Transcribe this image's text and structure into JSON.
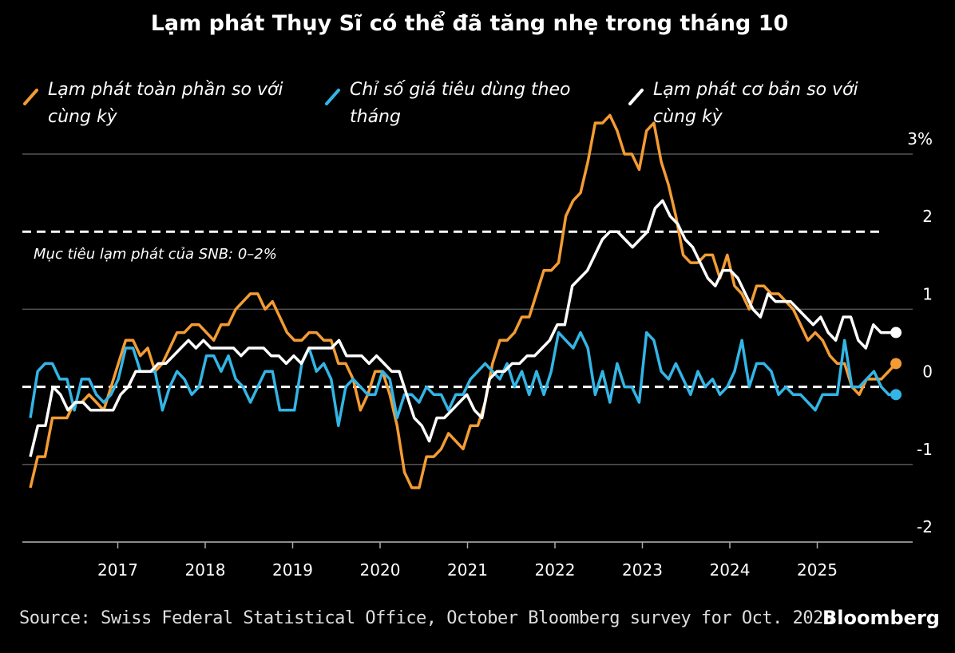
{
  "chart_data": {
    "type": "line",
    "title": "Lạm phát Thụy Sĩ có thể đã tăng nhẹ trong tháng 10",
    "ylim": [
      -2,
      3
    ],
    "yticks": [
      {
        "v": 3,
        "label": "3%"
      },
      {
        "v": 2,
        "label": "2"
      },
      {
        "v": 1,
        "label": "1"
      },
      {
        "v": 0,
        "label": "0"
      },
      {
        "v": -1,
        "label": "-1"
      },
      {
        "v": -2,
        "label": "-2"
      }
    ],
    "x_start": 2016.0,
    "x_end": 2025.9,
    "xticks": [
      "2017",
      "2018",
      "2019",
      "2020",
      "2021",
      "2022",
      "2023",
      "2024",
      "2025"
    ],
    "grid": true,
    "legend_position": "top",
    "reference_lines": [
      {
        "value": 2,
        "style": "dashed"
      },
      {
        "value": 0,
        "style": "dashed"
      }
    ],
    "annotation": "Mục tiêu lạm phát của SNB: 0–2%",
    "series": [
      {
        "name": "Lạm phát toàn phần so với cùng kỳ",
        "color": "#f39c33",
        "dot_last": true,
        "values": [
          -1.3,
          -0.9,
          -0.9,
          -0.4,
          -0.4,
          -0.4,
          -0.2,
          -0.2,
          -0.1,
          -0.2,
          -0.3,
          0.0,
          0.3,
          0.6,
          0.6,
          0.4,
          0.5,
          0.2,
          0.3,
          0.5,
          0.7,
          0.7,
          0.8,
          0.8,
          0.7,
          0.6,
          0.8,
          0.8,
          1.0,
          1.1,
          1.2,
          1.2,
          1.0,
          1.1,
          0.9,
          0.7,
          0.6,
          0.6,
          0.7,
          0.7,
          0.6,
          0.6,
          0.3,
          0.3,
          0.1,
          -0.3,
          -0.1,
          0.2,
          0.2,
          -0.1,
          -0.5,
          -1.1,
          -1.3,
          -1.3,
          -0.9,
          -0.9,
          -0.8,
          -0.6,
          -0.7,
          -0.8,
          -0.5,
          -0.5,
          -0.2,
          0.3,
          0.6,
          0.6,
          0.7,
          0.9,
          0.9,
          1.2,
          1.5,
          1.5,
          1.6,
          2.2,
          2.4,
          2.5,
          2.9,
          3.4,
          3.4,
          3.5,
          3.3,
          3.0,
          3.0,
          2.8,
          3.3,
          3.4,
          2.9,
          2.6,
          2.2,
          1.7,
          1.6,
          1.6,
          1.7,
          1.7,
          1.4,
          1.7,
          1.3,
          1.2,
          1.0,
          1.3,
          1.3,
          1.2,
          1.2,
          1.1,
          1.0,
          0.8,
          0.6,
          0.7,
          0.6,
          0.4,
          0.3,
          0.3,
          0.0,
          -0.1,
          0.1,
          0.1,
          0.1,
          0.2,
          0.3
        ]
      },
      {
        "name": "Chỉ số giá tiêu dùng theo tháng",
        "color": "#33b5e5",
        "dot_last": true,
        "values": [
          -0.4,
          0.2,
          0.3,
          0.3,
          0.1,
          0.1,
          -0.3,
          0.1,
          0.1,
          -0.1,
          -0.2,
          -0.1,
          0.1,
          0.5,
          0.5,
          0.2,
          0.2,
          0.2,
          -0.3,
          0.0,
          0.2,
          0.1,
          -0.1,
          0.0,
          0.4,
          0.4,
          0.2,
          0.4,
          0.1,
          0.0,
          -0.2,
          0.0,
          0.2,
          0.2,
          -0.3,
          -0.3,
          -0.3,
          0.3,
          0.5,
          0.2,
          0.3,
          0.1,
          -0.5,
          0.0,
          0.1,
          0.0,
          -0.1,
          -0.1,
          0.2,
          0.1,
          -0.4,
          -0.1,
          -0.1,
          -0.2,
          0.0,
          -0.1,
          -0.1,
          -0.3,
          -0.1,
          -0.1,
          0.1,
          0.2,
          0.3,
          0.2,
          0.1,
          0.3,
          0.0,
          0.2,
          -0.1,
          0.2,
          -0.1,
          0.2,
          0.7,
          0.6,
          0.5,
          0.7,
          0.5,
          -0.1,
          0.2,
          -0.2,
          0.3,
          0.0,
          0.0,
          -0.2,
          0.7,
          0.6,
          0.2,
          0.1,
          0.3,
          0.1,
          -0.1,
          0.2,
          0.0,
          0.1,
          -0.1,
          0.0,
          0.2,
          0.6,
          0.0,
          0.3,
          0.3,
          0.2,
          -0.1,
          0.0,
          -0.1,
          -0.1,
          -0.2,
          -0.3,
          -0.1,
          -0.1,
          -0.1,
          0.6,
          0.0,
          0.0,
          0.1,
          0.2,
          0.0,
          -0.1,
          -0.1
        ]
      },
      {
        "name": "Lạm phát cơ bản so với cùng kỳ",
        "color": "#ffffff",
        "dot_last": true,
        "values": [
          -0.9,
          -0.5,
          -0.5,
          0.0,
          -0.1,
          -0.3,
          -0.2,
          -0.2,
          -0.3,
          -0.3,
          -0.3,
          -0.3,
          -0.1,
          0.0,
          0.2,
          0.2,
          0.2,
          0.3,
          0.3,
          0.4,
          0.5,
          0.6,
          0.5,
          0.6,
          0.5,
          0.5,
          0.5,
          0.5,
          0.4,
          0.5,
          0.5,
          0.5,
          0.4,
          0.4,
          0.3,
          0.4,
          0.3,
          0.5,
          0.5,
          0.5,
          0.5,
          0.6,
          0.4,
          0.4,
          0.4,
          0.3,
          0.4,
          0.3,
          0.2,
          0.2,
          -0.1,
          -0.4,
          -0.5,
          -0.7,
          -0.4,
          -0.4,
          -0.3,
          -0.2,
          -0.1,
          -0.3,
          -0.4,
          0.1,
          0.2,
          0.2,
          0.3,
          0.3,
          0.4,
          0.4,
          0.5,
          0.6,
          0.8,
          0.8,
          1.3,
          1.4,
          1.5,
          1.7,
          1.9,
          2.0,
          2.0,
          1.9,
          1.8,
          1.9,
          2.0,
          2.3,
          2.4,
          2.2,
          2.1,
          1.9,
          1.8,
          1.6,
          1.4,
          1.3,
          1.5,
          1.5,
          1.4,
          1.2,
          1.0,
          0.9,
          1.2,
          1.1,
          1.1,
          1.1,
          1.0,
          0.9,
          0.8,
          0.9,
          0.7,
          0.6,
          0.9,
          0.9,
          0.6,
          0.5,
          0.8,
          0.7,
          0.7,
          0.7
        ]
      }
    ]
  },
  "source": "Source: Swiss Federal Statistical Office, October Bloomberg survey for Oct. 2025",
  "brand": "Bloomberg"
}
